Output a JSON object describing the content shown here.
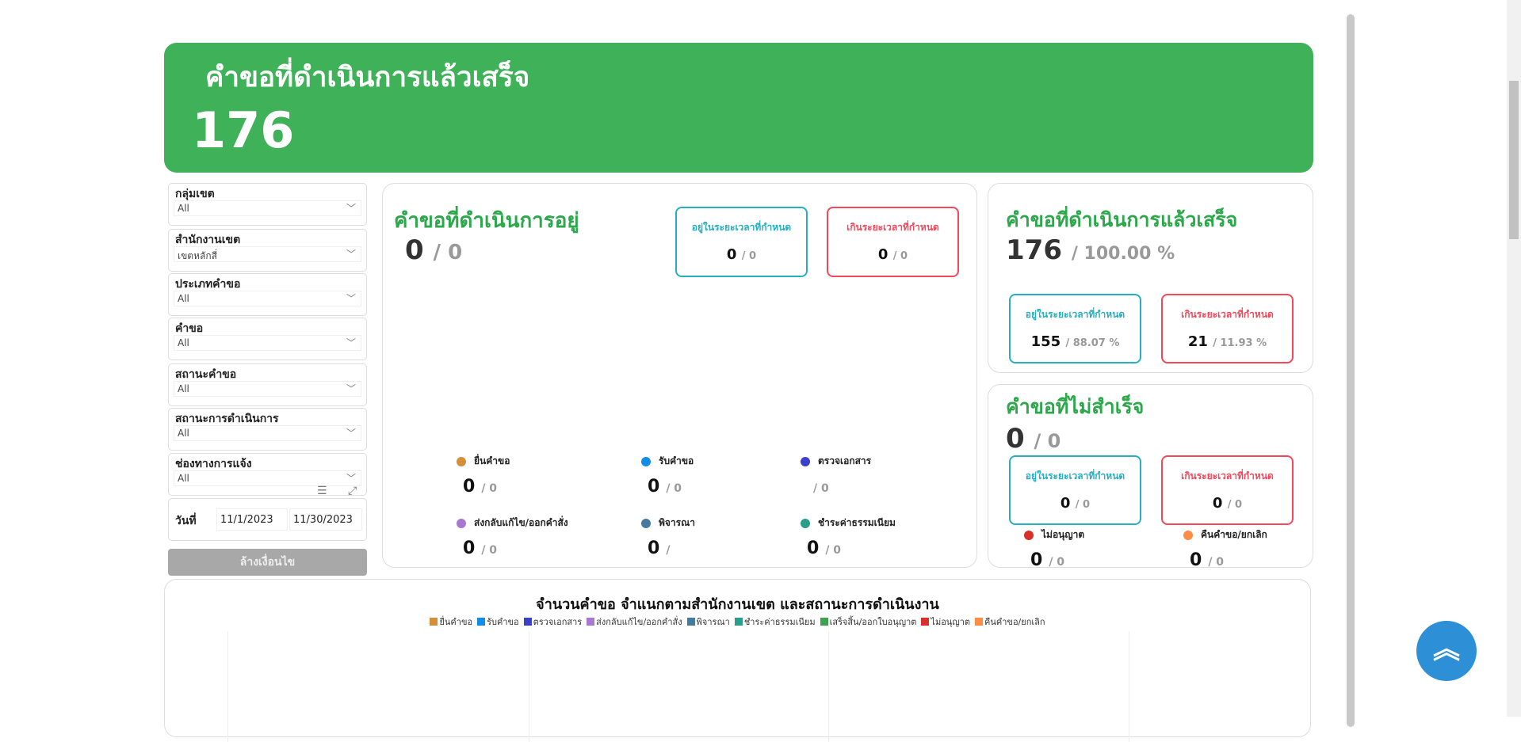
{
  "banner": {
    "title": "คำขอที่ดำเนินการแล้วเสร็จ",
    "value": "176"
  },
  "filters": [
    {
      "label": "กลุ่มเขต",
      "value": "All"
    },
    {
      "label": "สำนักงานเขต",
      "value": "เขตหลักสี่"
    },
    {
      "label": "ประเภทคำขอ",
      "value": "All"
    },
    {
      "label": "คำขอ",
      "value": "All"
    },
    {
      "label": "สถานะคำขอ",
      "value": "All"
    },
    {
      "label": "สถานะการดำเนินการ",
      "value": "All"
    },
    {
      "label": "ช่องทางการแจ้ง",
      "value": "All"
    }
  ],
  "date": {
    "label": "วันที่",
    "from": "11/1/2023",
    "to": "11/30/2023"
  },
  "clear_button": "ล้างเงื่อนไข",
  "in_progress": {
    "title": "คำขอที่ดำเนินการอยู่",
    "value": "0",
    "total": "/ 0",
    "on_time": {
      "label": "อยู่ในระยะเวลาที่กำหนด",
      "value": "0",
      "total": "/ 0"
    },
    "overdue": {
      "label": "เกินระยะเวลาที่กำหนด",
      "value": "0",
      "total": "/ 0"
    },
    "stats": [
      {
        "label": "ยื่นคำขอ",
        "value": "0",
        "total": "/ 0",
        "color": "#d38f3a"
      },
      {
        "label": "รับคำขอ",
        "value": "0",
        "total": "/ 0",
        "color": "#118de8"
      },
      {
        "label": "ตรวจเอกสาร",
        "value": "",
        "total": "/ 0",
        "color": "#3c3fc8"
      },
      {
        "label": "ส่งกลับแก้ไข/ออกคำสั่ง",
        "value": "0",
        "total": "/ 0",
        "color": "#a877cf"
      },
      {
        "label": "พิจารณา",
        "value": "0",
        "total": "/",
        "color": "#467a9e"
      },
      {
        "label": "ชำระค่าธรรมเนียม",
        "value": "0",
        "total": "/ 0",
        "color": "#2a9e8a"
      }
    ]
  },
  "completed": {
    "title": "คำขอที่ดำเนินการแล้วเสร็จ",
    "value": "176",
    "total": "/ 100.00 %",
    "on_time": {
      "label": "อยู่ในระยะเวลาที่กำหนด",
      "value": "155",
      "total": "/ 88.07 %"
    },
    "overdue": {
      "label": "เกินระยะเวลาที่กำหนด",
      "value": "21",
      "total": "/ 11.93 %"
    }
  },
  "failed": {
    "title": "คำขอที่ไม่สำเร็จ",
    "value": "0",
    "total": "/ 0",
    "on_time": {
      "label": "อยู่ในระยะเวลาที่กำหนด",
      "value": "0",
      "total": "/ 0"
    },
    "overdue": {
      "label": "เกินระยะเวลาที่กำหนด",
      "value": "0",
      "total": "/ 0"
    },
    "stats": [
      {
        "label": "ไม่อนุญาต",
        "value": "0",
        "total": "/ 0",
        "color": "#d9302a"
      },
      {
        "label": "คืนคำขอ/ยกเลิก",
        "value": "0",
        "total": "/ 0",
        "color": "#ff8c44"
      }
    ]
  },
  "chart": {
    "title": "จำนวนคำขอ  จำแนกตามสำนักงานเขต และสถานะการดำเนินงาน",
    "legend": [
      {
        "name": "ยื่นคำขอ",
        "color": "#d38f3a"
      },
      {
        "name": "รับคำขอ",
        "color": "#118de8"
      },
      {
        "name": "ตรวจเอกสาร",
        "color": "#3c3fc8"
      },
      {
        "name": "ส่งกลับแก้ไข/ออกคำสั่ง",
        "color": "#a877cf"
      },
      {
        "name": "พิจารณา",
        "color": "#467a9e"
      },
      {
        "name": "ชำระค่าธรรมเนียม",
        "color": "#2a9e8a"
      },
      {
        "name": "เสร็จสิ้น/ออกใบอนุญาต",
        "color": "#3fa34d"
      },
      {
        "name": "ไม่อนุญาต",
        "color": "#d9302a"
      },
      {
        "name": "คืนคำขอ/ยกเลิก",
        "color": "#ff8c44"
      }
    ]
  }
}
